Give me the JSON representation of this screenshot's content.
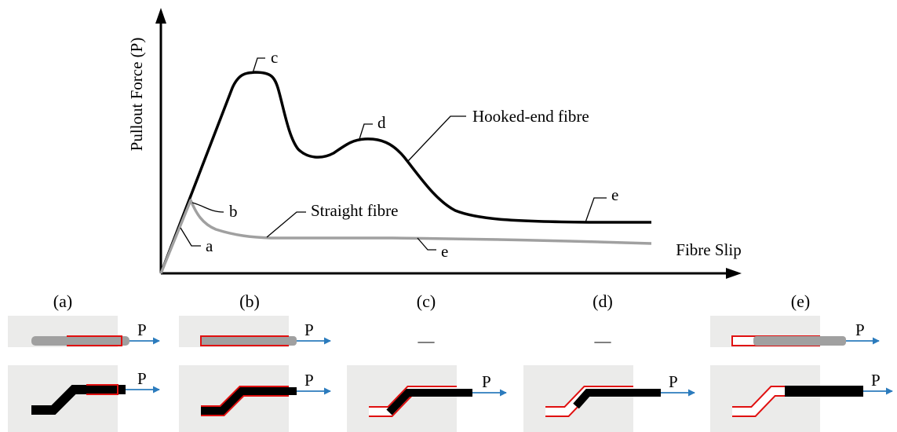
{
  "axes": {
    "y_label": "Pullout Force (P)",
    "x_label": "Fibre Slip"
  },
  "curves": [
    {
      "label": "Hooked-end fibre",
      "points": [
        "c",
        "d",
        "e"
      ]
    },
    {
      "label": "Straight fibre",
      "points": [
        "a",
        "b",
        "e"
      ]
    }
  ],
  "force_label": "P",
  "panels": [
    {
      "label": "(a)"
    },
    {
      "label": "(b)"
    },
    {
      "label": "(c)",
      "top": "—"
    },
    {
      "label": "(d)",
      "top": "—"
    },
    {
      "label": "(e)"
    }
  ]
}
